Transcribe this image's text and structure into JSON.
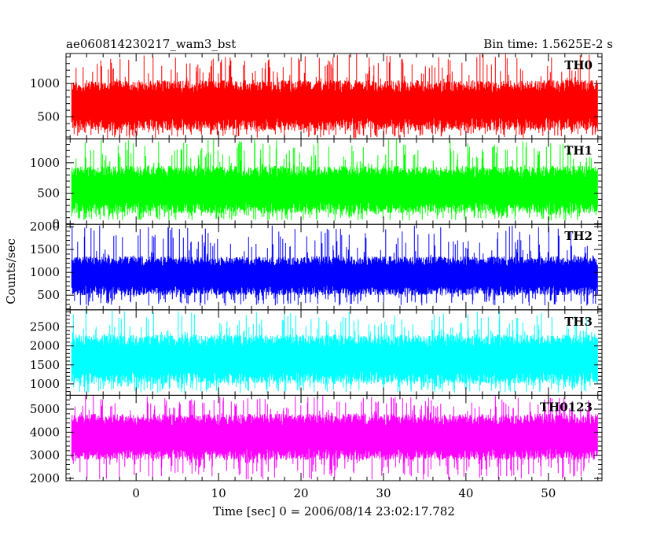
{
  "header": {
    "title": "ae060814230217_wam3_bst",
    "bin_time": "Bin time: 1.5625E-2 s"
  },
  "axes": {
    "ylabel": "Counts/sec",
    "xlabel": "Time [sec] 0 = 2006/08/14 23:02:17.782"
  },
  "chart_data": {
    "type": "line",
    "x_range": [
      -8.5,
      56.5
    ],
    "x_ticks": [
      0,
      10,
      20,
      30,
      40,
      50
    ],
    "data_x_range": [
      -7.8,
      56.0
    ],
    "grid": false,
    "panels": [
      {
        "name": "TH0",
        "color": "#ff0000",
        "ylim": [
          170,
          1450
        ],
        "y_ticks": [
          500,
          1000
        ],
        "band": [
          300,
          1050
        ],
        "max": 1450,
        "min": 180
      },
      {
        "name": "TH1",
        "color": "#00ff00",
        "ylim": [
          -10,
          1390
        ],
        "y_ticks": [
          0,
          500,
          1000
        ],
        "band": [
          170,
          950
        ],
        "max": 1390,
        "min": 50
      },
      {
        "name": "TH2",
        "color": "#0000ff",
        "ylim": [
          180,
          2050
        ],
        "y_ticks": [
          500,
          1000,
          1500,
          2000
        ],
        "band": [
          500,
          1350
        ],
        "max": 2050,
        "min": 270
      },
      {
        "name": "TH3",
        "color": "#00ffff",
        "ylim": [
          700,
          2950
        ],
        "y_ticks": [
          1000,
          1500,
          2000,
          2500
        ],
        "band": [
          1000,
          2300
        ],
        "max": 2950,
        "min": 760
      },
      {
        "name": "TH0123",
        "color": "#ff00ff",
        "ylim": [
          1900,
          5600
        ],
        "y_ticks": [
          2000,
          3000,
          4000,
          5000
        ],
        "band": [
          2800,
          4800
        ],
        "max": 5600,
        "min": 1950
      }
    ]
  }
}
